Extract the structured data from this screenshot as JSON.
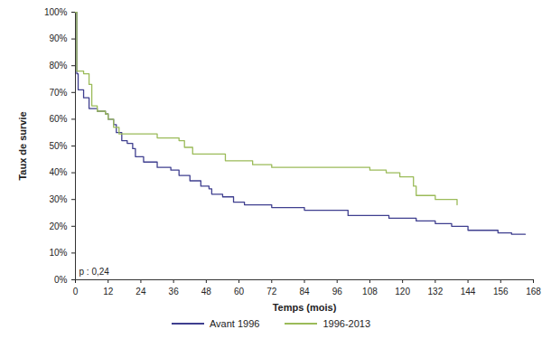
{
  "chart_data": {
    "type": "line",
    "x_label": "Temps (mois)",
    "y_label": "Taux de survie",
    "annotation": "p : 0,24",
    "xlim": [
      0,
      168
    ],
    "xticks": [
      0,
      12,
      24,
      36,
      48,
      60,
      72,
      84,
      96,
      108,
      120,
      132,
      144,
      156,
      168
    ],
    "ylim": [
      0,
      100
    ],
    "yticks": [
      {
        "value": 0,
        "label": "0%"
      },
      {
        "value": 10,
        "label": "10%"
      },
      {
        "value": 20,
        "label": "20%"
      },
      {
        "value": 30,
        "label": "30%"
      },
      {
        "value": 40,
        "label": "40%"
      },
      {
        "value": 50,
        "label": "50%"
      },
      {
        "value": 60,
        "label": "60%"
      },
      {
        "value": 70,
        "label": "70%"
      },
      {
        "value": 80,
        "label": "80%"
      },
      {
        "value": 90,
        "label": "90%"
      },
      {
        "value": 100,
        "label": "100%"
      }
    ],
    "grid": false,
    "legend": "bottom",
    "series": [
      {
        "name": "Avant 1996",
        "color": "#3f3f8f",
        "x": [
          0,
          0.5,
          1,
          3,
          5,
          8,
          11,
          12,
          14,
          15,
          17,
          19,
          21,
          22,
          25,
          30,
          35,
          38,
          42,
          46,
          49,
          50,
          54,
          58,
          62,
          72,
          84,
          100,
          115,
          125,
          132,
          138,
          144,
          155,
          160,
          165
        ],
        "values": [
          100,
          77,
          71,
          68,
          64,
          63,
          62,
          60,
          58,
          55,
          52,
          51,
          49,
          46,
          44,
          42,
          41,
          39,
          37,
          35,
          34,
          32,
          31,
          29,
          28,
          27,
          26,
          24,
          23,
          22,
          21,
          20,
          18.5,
          17.5,
          17,
          17
        ]
      },
      {
        "name": "1996-2013",
        "color": "#9bbb59",
        "x": [
          0,
          0.5,
          3,
          5,
          6,
          8,
          11,
          12,
          14,
          16,
          24,
          30,
          38,
          40,
          43,
          55,
          65,
          72,
          103,
          108,
          114,
          119,
          124,
          125,
          132,
          140
        ],
        "values": [
          100,
          78,
          77,
          73,
          65,
          63,
          62,
          60,
          57,
          54.5,
          54.5,
          53,
          52,
          49.5,
          47,
          44.5,
          43,
          42,
          42,
          41,
          40,
          38.5,
          35,
          31.5,
          30,
          28
        ]
      }
    ]
  }
}
